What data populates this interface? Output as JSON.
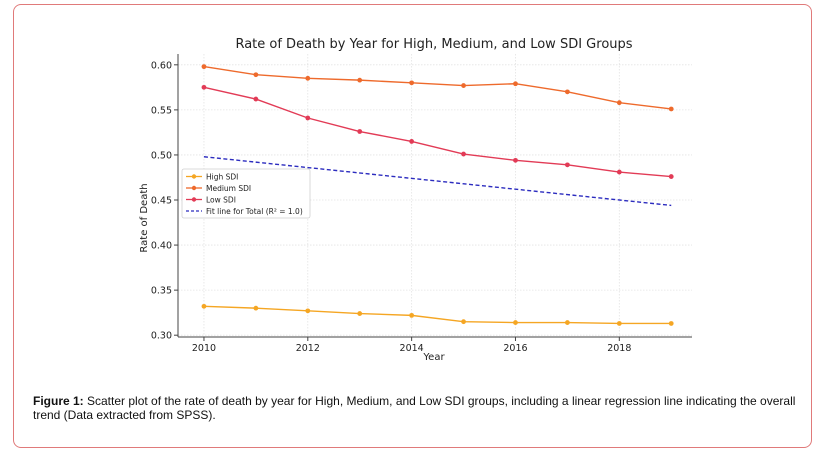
{
  "caption": {
    "label": "Figure 1:",
    "text": " Scatter plot of the rate of death by year for High, Medium, and Low SDI groups, including a linear regression line indicating the overall trend (Data extracted from SPSS)."
  },
  "chart_data": {
    "type": "line",
    "title": "Rate of Death by Year for High, Medium, and Low SDI Groups",
    "xlabel": "Year",
    "ylabel": "Rate of Death",
    "xlim": [
      2009.5,
      2019.4
    ],
    "ylim": [
      0.298,
      0.612
    ],
    "xticks": [
      2010,
      2012,
      2014,
      2016,
      2018
    ],
    "xtick_labels": [
      "2010",
      "2012",
      "2014",
      "2016",
      "2018"
    ],
    "yticks": [
      0.3,
      0.35,
      0.4,
      0.45,
      0.5,
      0.55,
      0.6
    ],
    "ytick_labels": [
      "0.30",
      "0.35",
      "0.40",
      "0.45",
      "0.50",
      "0.55",
      "0.60"
    ],
    "grid": true,
    "legend_position": "center-left",
    "x": [
      2010,
      2011,
      2012,
      2013,
      2014,
      2015,
      2016,
      2017,
      2018,
      2019
    ],
    "series": [
      {
        "name": "High SDI",
        "color": "#f5a623",
        "values": [
          0.332,
          0.33,
          0.327,
          0.324,
          0.322,
          0.315,
          0.314,
          0.314,
          0.313,
          0.313
        ]
      },
      {
        "name": "Medium SDI",
        "color": "#ee6a2c",
        "values": [
          0.598,
          0.589,
          0.585,
          0.583,
          0.58,
          0.577,
          0.579,
          0.57,
          0.558,
          0.551
        ]
      },
      {
        "name": "Low SDI",
        "color": "#e23b56",
        "values": [
          0.575,
          0.562,
          0.541,
          0.526,
          0.515,
          0.501,
          0.494,
          0.489,
          0.481,
          0.476
        ]
      }
    ],
    "fit_line": {
      "name": "Fit line for Total (R² = 1.0)",
      "color": "#2c2cbf",
      "x": [
        2010,
        2019
      ],
      "values": [
        0.498,
        0.444
      ]
    }
  }
}
